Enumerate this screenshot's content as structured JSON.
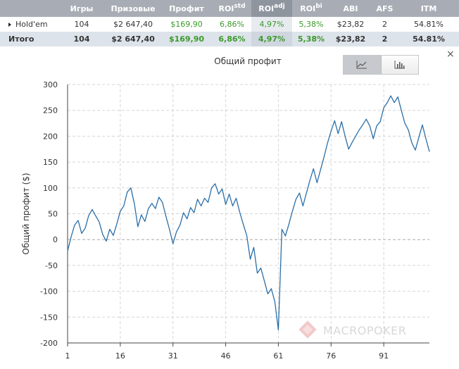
{
  "table": {
    "headers": [
      "",
      "Игры",
      "Призовые",
      "Профит",
      "ROI",
      "ROI",
      "ROI",
      "ABI",
      "AFS",
      "ITM"
    ],
    "header_sup": {
      "roi_std": "std",
      "roi_adj": "adj",
      "roi_bi": "bi"
    },
    "rows": [
      {
        "label": "Hold'em",
        "games": "104",
        "prize": "$2 647,40",
        "profit": "$169,90",
        "roi_std": "6,86%",
        "roi_adj": "4,97%",
        "roi_bi": "5,38%",
        "abi": "$23,82",
        "afs": "2",
        "itm": "54.81%"
      },
      {
        "label": "Итого",
        "games": "104",
        "prize": "$2 647,40",
        "profit": "$169,90",
        "roi_std": "6,86%",
        "roi_adj": "4,97%",
        "roi_bi": "5,38%",
        "abi": "$23,82",
        "afs": "2",
        "itm": "54.81%"
      }
    ]
  },
  "chart_title": "Общий профит",
  "toggle": {
    "active": "line-chart-icon",
    "inactive": "bar-chart-icon"
  },
  "close_label": "×",
  "watermark": "MACROPOKER",
  "colors": {
    "line": "#2a6fa8",
    "grid": "#d5d5d5",
    "green": "#3a9a2a",
    "header_bg": "#a8adb5"
  },
  "chart_data": {
    "type": "line",
    "title": "Общий профит",
    "xlabel": "",
    "ylabel": "Общий профит ($)",
    "xlim": [
      1,
      104
    ],
    "ylim": [
      -200,
      300
    ],
    "xticks": [
      1,
      16,
      31,
      46,
      61,
      76,
      91
    ],
    "yticks": [
      300,
      250,
      200,
      150,
      100,
      50,
      0,
      -50,
      -100,
      -150,
      -200
    ],
    "grid": true,
    "series": [
      {
        "x": [
          1,
          2,
          3,
          4,
          5,
          6,
          7,
          8,
          9,
          10,
          11,
          12,
          13,
          14,
          15,
          16,
          17,
          18,
          19,
          20,
          21,
          22,
          23,
          24,
          25,
          26,
          27,
          28,
          29,
          30,
          31,
          32,
          33,
          34,
          35,
          36,
          37,
          38,
          39,
          40,
          41,
          42,
          43,
          44,
          45,
          46,
          47,
          48,
          49,
          50,
          51,
          52,
          53,
          54,
          55,
          56,
          57,
          58,
          59,
          60,
          61,
          62,
          63,
          64,
          65,
          66,
          67,
          68,
          69,
          70,
          71,
          72,
          73,
          74,
          75,
          76,
          77,
          78,
          79,
          80,
          81,
          82,
          83,
          84,
          85,
          86,
          87,
          88,
          89,
          90,
          91,
          92,
          93,
          94,
          95,
          96,
          97,
          98,
          99,
          100,
          101,
          102,
          103,
          104
        ],
        "y": [
          -22,
          5,
          28,
          37,
          12,
          22,
          46,
          58,
          46,
          34,
          10,
          -3,
          20,
          8,
          30,
          55,
          65,
          92,
          100,
          70,
          25,
          48,
          35,
          60,
          70,
          60,
          82,
          72,
          45,
          20,
          -8,
          15,
          28,
          52,
          40,
          62,
          52,
          78,
          65,
          80,
          72,
          100,
          108,
          88,
          98,
          68,
          88,
          65,
          80,
          53,
          30,
          8,
          -38,
          -15,
          -65,
          -55,
          -80,
          -105,
          -95,
          -120,
          -175,
          20,
          7,
          30,
          55,
          78,
          90,
          65,
          90,
          115,
          137,
          110,
          135,
          160,
          187,
          210,
          230,
          205,
          228,
          200,
          175,
          188,
          200,
          212,
          222,
          233,
          220,
          195,
          220,
          228,
          255,
          265,
          278,
          265,
          276,
          250,
          225,
          212,
          187,
          173,
          198,
          222,
          195,
          170
        ]
      }
    ]
  }
}
